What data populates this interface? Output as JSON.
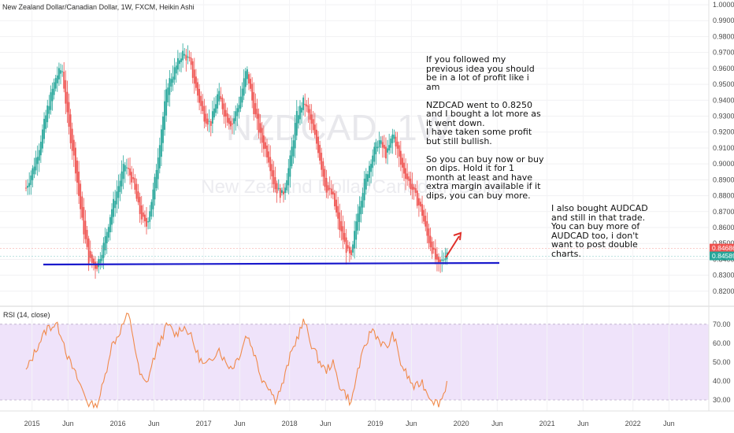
{
  "header": {
    "title": "New Zealand Dollar/Canadian Dollar, 1W, FXCM, Heikin Ashi"
  },
  "watermark": {
    "symbol": "NZDCAD, 1W",
    "name": "New Zealand Dollar/Canadian Dollar"
  },
  "annotations": {
    "main": "If you followed my previous idea you should be in a lot of profit like i am\n\nNZDCAD went to 0.8250 and I bought a lot more as it went down.\nI have taken some profit but still bullish.\n\nSo you can buy now or buy on dips. Hold it for 1 month at least and have extra margin available if it dips, you can buy more.",
    "audcad": "I also bought AUDCAD and still in that trade. You can buy more of AUDCAD too, i don't want to post double charts."
  },
  "rsi": {
    "title": "RSI (14, close)"
  },
  "colors": {
    "up": "#26a69a",
    "down": "#ef5350",
    "support_line": "#1a1acc",
    "arrow": "#e0302a",
    "rsi_line": "#f08a4b",
    "rsi_band": "#efe3fa",
    "price_badge_red": "#ef5350",
    "price_badge_green": "#26a69a"
  },
  "chart_data": [
    {
      "type": "candlestick",
      "style": "Heikin Ashi",
      "symbol": "NZDCAD",
      "interval": "1W",
      "ylim": [
        0.815,
        1.0
      ],
      "y_ticks": [
        "0.82000",
        "0.83000",
        "0.84000",
        "0.85000",
        "0.86000",
        "0.87000",
        "0.88000",
        "0.89000",
        "0.90000",
        "0.91000",
        "0.92000",
        "0.93000",
        "0.94000",
        "0.95000",
        "0.96000",
        "0.97000",
        "0.98000",
        "0.99000",
        "1.00000"
      ],
      "x_ticks": [
        "2015",
        "Jun",
        "2016",
        "Jun",
        "2017",
        "Jun",
        "2018",
        "Jun",
        "2019",
        "Jun",
        "2020",
        "Jun",
        "2021",
        "Jun",
        "2022",
        "Jun"
      ],
      "price_labels": [
        "0.84686",
        "0.84589"
      ],
      "price_label_values": [
        0.84686,
        0.84589
      ],
      "support_level": 0.8375,
      "close_path": [
        [
          2014.93,
          0.885
        ],
        [
          2015.0,
          0.895
        ],
        [
          2015.08,
          0.91
        ],
        [
          2015.18,
          0.935
        ],
        [
          2015.28,
          0.955
        ],
        [
          2015.35,
          0.96
        ],
        [
          2015.42,
          0.925
        ],
        [
          2015.5,
          0.9
        ],
        [
          2015.58,
          0.865
        ],
        [
          2015.66,
          0.84
        ],
        [
          2015.75,
          0.835
        ],
        [
          2015.84,
          0.85
        ],
        [
          2015.92,
          0.87
        ],
        [
          2016.0,
          0.885
        ],
        [
          2016.08,
          0.9
        ],
        [
          2016.17,
          0.89
        ],
        [
          2016.25,
          0.87
        ],
        [
          2016.33,
          0.86
        ],
        [
          2016.42,
          0.885
        ],
        [
          2016.5,
          0.92
        ],
        [
          2016.58,
          0.95
        ],
        [
          2016.67,
          0.96
        ],
        [
          2016.75,
          0.97
        ],
        [
          2016.83,
          0.965
        ],
        [
          2016.92,
          0.945
        ],
        [
          2017.0,
          0.93
        ],
        [
          2017.08,
          0.925
        ],
        [
          2017.17,
          0.945
        ],
        [
          2017.25,
          0.93
        ],
        [
          2017.33,
          0.925
        ],
        [
          2017.42,
          0.94
        ],
        [
          2017.5,
          0.96
        ],
        [
          2017.58,
          0.935
        ],
        [
          2017.67,
          0.915
        ],
        [
          2017.75,
          0.905
        ],
        [
          2017.83,
          0.885
        ],
        [
          2017.92,
          0.88
        ],
        [
          2018.0,
          0.9
        ],
        [
          2018.08,
          0.93
        ],
        [
          2018.17,
          0.94
        ],
        [
          2018.25,
          0.925
        ],
        [
          2018.33,
          0.91
        ],
        [
          2018.42,
          0.885
        ],
        [
          2018.5,
          0.88
        ],
        [
          2018.58,
          0.86
        ],
        [
          2018.67,
          0.845
        ],
        [
          2018.72,
          0.84
        ],
        [
          2018.79,
          0.87
        ],
        [
          2018.88,
          0.89
        ],
        [
          2018.96,
          0.905
        ],
        [
          2019.04,
          0.915
        ],
        [
          2019.13,
          0.905
        ],
        [
          2019.21,
          0.92
        ],
        [
          2019.29,
          0.9
        ],
        [
          2019.38,
          0.89
        ],
        [
          2019.46,
          0.88
        ],
        [
          2019.54,
          0.87
        ],
        [
          2019.6,
          0.855
        ],
        [
          2019.67,
          0.845
        ],
        [
          2019.73,
          0.835
        ],
        [
          2019.79,
          0.84
        ],
        [
          2019.84,
          0.846
        ]
      ]
    },
    {
      "type": "line",
      "title": "RSI (14, close)",
      "ylim": [
        25,
        77
      ],
      "y_ticks": [
        "30.00",
        "40.00",
        "50.00",
        "60.00",
        "70.00"
      ],
      "band": [
        30,
        70
      ],
      "series": [
        {
          "values": [
            [
              2014.93,
              45
            ],
            [
              2015.0,
              52
            ],
            [
              2015.08,
              60
            ],
            [
              2015.18,
              68
            ],
            [
              2015.28,
              70
            ],
            [
              2015.35,
              64
            ],
            [
              2015.42,
              52
            ],
            [
              2015.5,
              44
            ],
            [
              2015.58,
              36
            ],
            [
              2015.66,
              28
            ],
            [
              2015.75,
              26
            ],
            [
              2015.84,
              40
            ],
            [
              2015.92,
              58
            ],
            [
              2016.0,
              64
            ],
            [
              2016.08,
              72
            ],
            [
              2016.12,
              75
            ],
            [
              2016.17,
              66
            ],
            [
              2016.25,
              44
            ],
            [
              2016.33,
              38
            ],
            [
              2016.42,
              52
            ],
            [
              2016.5,
              62
            ],
            [
              2016.58,
              70
            ],
            [
              2016.67,
              64
            ],
            [
              2016.75,
              69
            ],
            [
              2016.83,
              66
            ],
            [
              2016.92,
              55
            ],
            [
              2017.0,
              48
            ],
            [
              2017.08,
              50
            ],
            [
              2017.17,
              58
            ],
            [
              2017.25,
              50
            ],
            [
              2017.33,
              47
            ],
            [
              2017.42,
              54
            ],
            [
              2017.5,
              65
            ],
            [
              2017.58,
              56
            ],
            [
              2017.67,
              42
            ],
            [
              2017.75,
              38
            ],
            [
              2017.83,
              30
            ],
            [
              2017.92,
              38
            ],
            [
              2018.0,
              52
            ],
            [
              2018.08,
              62
            ],
            [
              2018.17,
              72
            ],
            [
              2018.25,
              60
            ],
            [
              2018.33,
              52
            ],
            [
              2018.42,
              45
            ],
            [
              2018.5,
              50
            ],
            [
              2018.58,
              38
            ],
            [
              2018.67,
              32
            ],
            [
              2018.72,
              28
            ],
            [
              2018.79,
              45
            ],
            [
              2018.88,
              58
            ],
            [
              2018.96,
              68
            ],
            [
              2019.04,
              62
            ],
            [
              2019.13,
              57
            ],
            [
              2019.21,
              65
            ],
            [
              2019.29,
              50
            ],
            [
              2019.38,
              42
            ],
            [
              2019.46,
              36
            ],
            [
              2019.54,
              40
            ],
            [
              2019.6,
              34
            ],
            [
              2019.67,
              30
            ],
            [
              2019.73,
              28
            ],
            [
              2019.79,
              32
            ],
            [
              2019.84,
              41
            ]
          ]
        }
      ]
    }
  ]
}
